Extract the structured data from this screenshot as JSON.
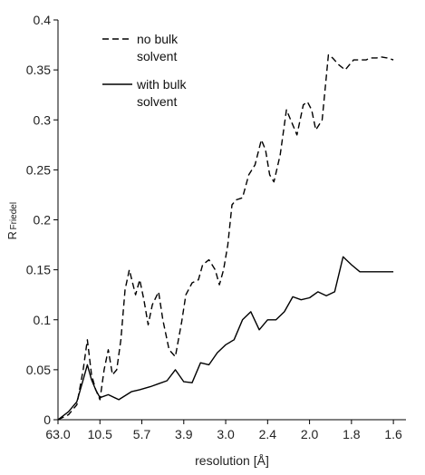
{
  "chart_data": {
    "type": "line",
    "xlabel": "resolution [Å]",
    "ylabel_main": "R",
    "ylabel_sub": "Friedel",
    "ylim": [
      0,
      0.4
    ],
    "y_ticks": [
      "0",
      "0.05",
      "0.1",
      "0.15",
      "0.2",
      "0.25",
      "0.3",
      "0.35",
      "0.4"
    ],
    "x_ticks": [
      "63.0",
      "10.5",
      "5.7",
      "3.9",
      "3.0",
      "2.4",
      "2.0",
      "1.8",
      "1.6"
    ],
    "x_range": [
      0,
      8.3
    ],
    "x_unit": "tick index",
    "grid": false,
    "legend_placement": "top-left",
    "series": [
      {
        "name": "no bulk solvent",
        "style": "dashed",
        "color": "#000000",
        "legend_label_lines": [
          "no bulk",
          "solvent"
        ],
        "x": [
          0.0,
          0.25,
          0.45,
          0.6,
          0.7,
          0.8,
          0.9,
          1.0,
          1.1,
          1.2,
          1.3,
          1.4,
          1.5,
          1.6,
          1.7,
          1.85,
          1.95,
          2.05,
          2.15,
          2.25,
          2.4,
          2.5,
          2.65,
          2.8,
          2.95,
          3.05,
          3.2,
          3.35,
          3.45,
          3.6,
          3.75,
          3.85,
          3.95,
          4.05,
          4.15,
          4.25,
          4.4,
          4.55,
          4.7,
          4.85,
          4.95,
          5.05,
          5.15,
          5.3,
          5.45,
          5.55,
          5.7,
          5.85,
          5.95,
          6.05,
          6.15,
          6.3,
          6.45,
          6.55,
          6.7,
          6.85,
          6.95,
          7.05,
          7.2,
          7.35,
          7.45,
          7.6,
          7.7,
          7.85,
          8.0
        ],
        "values": [
          0.0,
          0.005,
          0.015,
          0.05,
          0.08,
          0.045,
          0.03,
          0.02,
          0.05,
          0.07,
          0.045,
          0.05,
          0.08,
          0.13,
          0.15,
          0.125,
          0.14,
          0.12,
          0.095,
          0.115,
          0.128,
          0.1,
          0.07,
          0.063,
          0.098,
          0.125,
          0.137,
          0.14,
          0.155,
          0.16,
          0.15,
          0.135,
          0.15,
          0.175,
          0.215,
          0.22,
          0.222,
          0.245,
          0.255,
          0.28,
          0.27,
          0.245,
          0.238,
          0.265,
          0.31,
          0.3,
          0.285,
          0.315,
          0.318,
          0.31,
          0.29,
          0.3,
          0.365,
          0.362,
          0.355,
          0.35,
          0.355,
          0.36,
          0.36,
          0.36,
          0.362,
          0.362,
          0.363,
          0.362,
          0.36
        ]
      },
      {
        "name": "with bulk solvent",
        "style": "solid",
        "color": "#000000",
        "legend_label_lines": [
          "with bulk",
          "solvent"
        ],
        "x": [
          0.0,
          0.25,
          0.45,
          0.6,
          0.7,
          0.8,
          0.9,
          1.0,
          1.2,
          1.45,
          1.75,
          1.95,
          2.2,
          2.4,
          2.6,
          2.8,
          3.0,
          3.2,
          3.4,
          3.6,
          3.8,
          4.0,
          4.2,
          4.4,
          4.6,
          4.8,
          5.0,
          5.2,
          5.4,
          5.6,
          5.8,
          6.0,
          6.2,
          6.4,
          6.6,
          6.8,
          7.0,
          7.2,
          7.4,
          7.6,
          7.8,
          8.0
        ],
        "values": [
          0.0,
          0.008,
          0.018,
          0.04,
          0.055,
          0.04,
          0.03,
          0.022,
          0.025,
          0.02,
          0.028,
          0.03,
          0.033,
          0.036,
          0.039,
          0.05,
          0.038,
          0.037,
          0.057,
          0.055,
          0.067,
          0.075,
          0.08,
          0.1,
          0.108,
          0.09,
          0.1,
          0.1,
          0.108,
          0.123,
          0.12,
          0.122,
          0.128,
          0.124,
          0.128,
          0.163,
          0.155,
          0.148,
          0.148,
          0.148,
          0.148,
          0.148
        ]
      }
    ]
  }
}
